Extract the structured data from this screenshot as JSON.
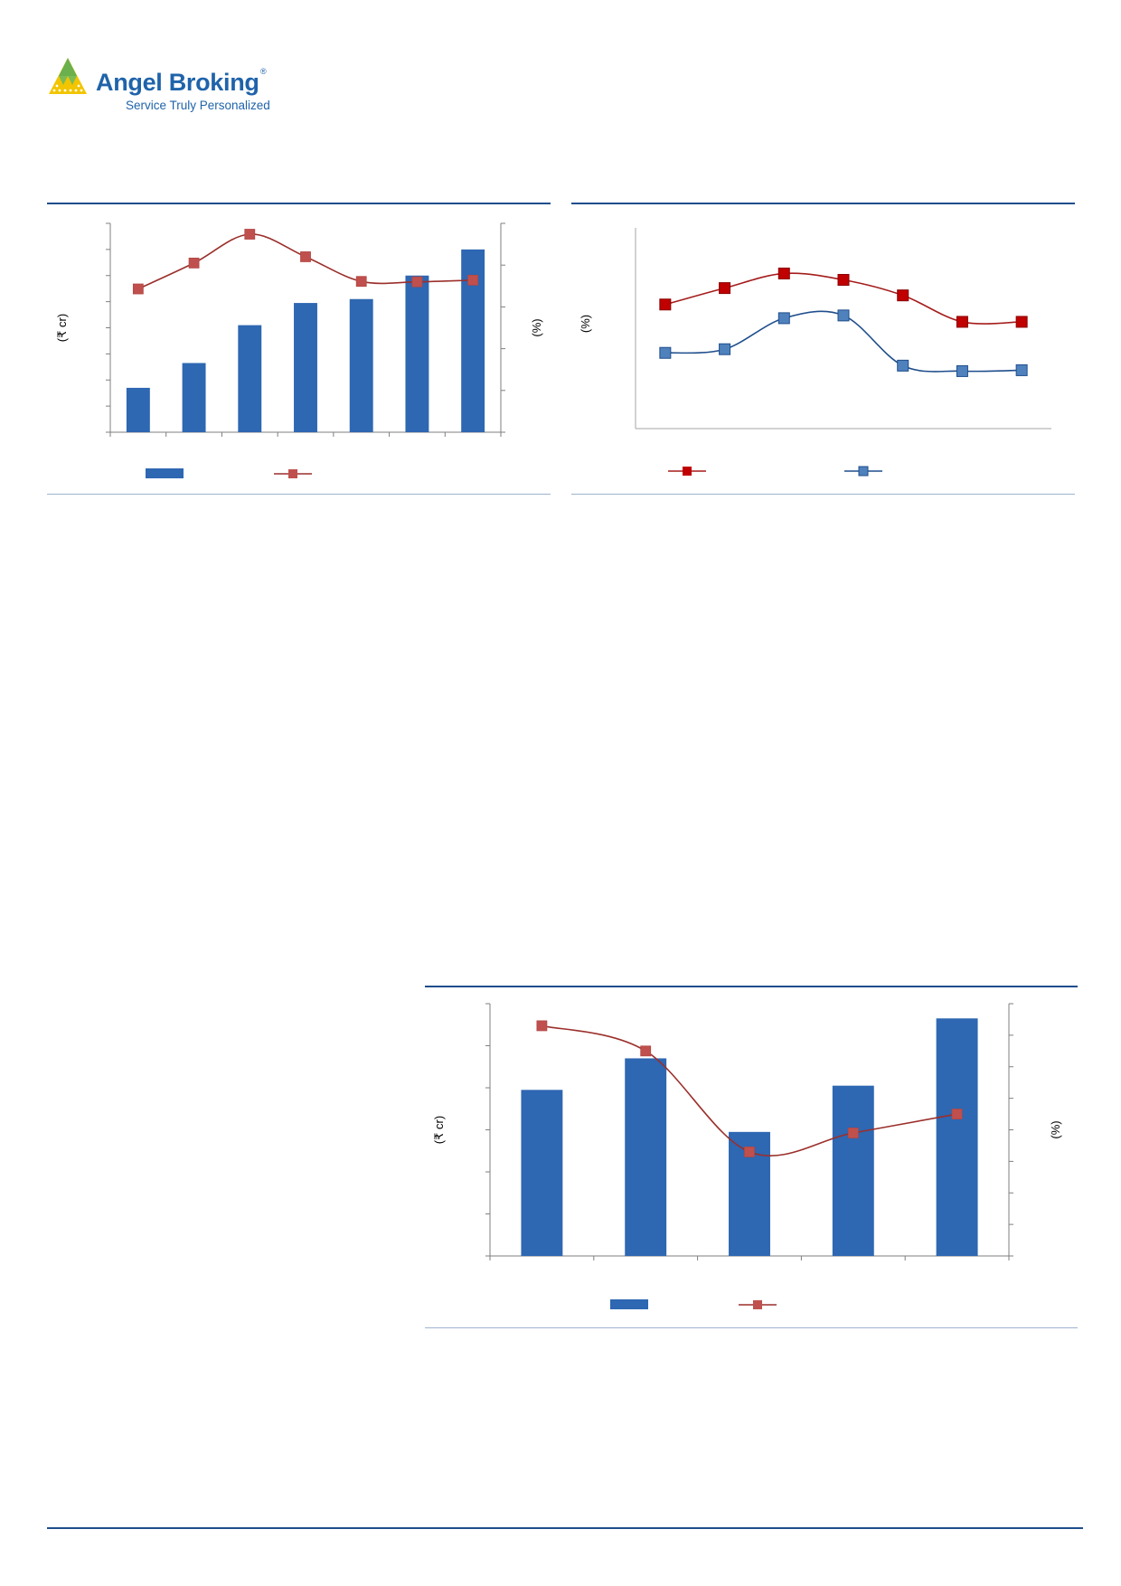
{
  "brand": {
    "name": "Angel Broking",
    "registered_mark": "®",
    "tagline": "Service Truly Personalized",
    "colors": {
      "primary": "#1f63aa",
      "logo_green": "#6ab04c",
      "logo_yellow": "#f2c500"
    }
  },
  "colors": {
    "bar": "#2e67b2",
    "line_red": "#c0504d",
    "line_dark_red": "#c00000",
    "line_blue": "#4f81bd",
    "rule": "#1f4e8c"
  },
  "chart_data": [
    {
      "type": "bar",
      "combo": "bar+line",
      "categories": [
        "",
        "",
        "",
        "",
        "",
        "",
        ""
      ],
      "series": [
        {
          "kind": "bar",
          "axis": "left",
          "values": [
            17,
            26.5,
            41,
            49.5,
            51,
            60,
            70
          ]
        },
        {
          "kind": "line",
          "axis": "right",
          "values": [
            34.3,
            40.5,
            47.4,
            42,
            36.1,
            36,
            36.4
          ]
        }
      ],
      "ylabel_left": "(₹ cr)",
      "ylabel_right": "(%)",
      "ylim_left": [
        0,
        80
      ],
      "ylim_right": [
        0,
        50
      ],
      "legend_position": "bottom",
      "grid": false
    },
    {
      "type": "line",
      "categories": [
        "",
        "",
        "",
        "",
        "",
        "",
        ""
      ],
      "series": [
        {
          "values": [
            68,
            77,
            85,
            81.5,
            73,
            58.5,
            58.5
          ]
        },
        {
          "values": [
            41.5,
            43.5,
            60.5,
            62,
            34.5,
            31.5,
            32
          ]
        }
      ],
      "ylabel": "(%)",
      "ylim": [
        0,
        110
      ],
      "legend_position": "bottom",
      "grid": false
    },
    {
      "type": "bar",
      "combo": "bar+line",
      "categories": [
        "",
        "",
        "",
        "",
        ""
      ],
      "series": [
        {
          "kind": "bar",
          "axis": "left",
          "values": [
            79,
            94,
            59,
            81,
            113
          ]
        },
        {
          "kind": "line",
          "axis": "right",
          "values": [
            7.3,
            6.5,
            3.3,
            3.9,
            4.5
          ]
        }
      ],
      "ylabel_left": "(₹ cr)",
      "ylabel_right": "(%)",
      "ylim_left": [
        0,
        120
      ],
      "ylim_right": [
        0,
        8
      ],
      "legend_position": "bottom",
      "grid": false
    }
  ]
}
